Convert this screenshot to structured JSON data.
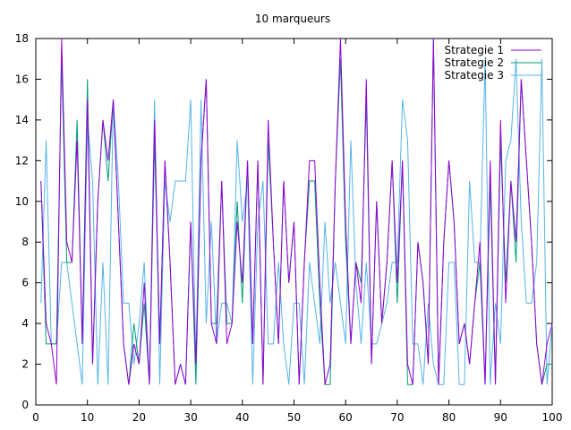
{
  "chart_data": {
    "type": "line",
    "title": "10 marqueurs",
    "xlabel": "",
    "ylabel": "",
    "xlim": [
      0,
      100
    ],
    "ylim": [
      0,
      18
    ],
    "xticks": [
      0,
      10,
      20,
      30,
      40,
      50,
      60,
      70,
      80,
      90,
      100
    ],
    "yticks": [
      0,
      2,
      4,
      6,
      8,
      10,
      12,
      14,
      16,
      18
    ],
    "grid": false,
    "legend_position": "top-right",
    "x": [
      1,
      2,
      3,
      4,
      5,
      6,
      7,
      8,
      9,
      10,
      11,
      12,
      13,
      14,
      15,
      16,
      17,
      18,
      19,
      20,
      21,
      22,
      23,
      24,
      25,
      26,
      27,
      28,
      29,
      30,
      31,
      32,
      33,
      34,
      35,
      36,
      37,
      38,
      39,
      40,
      41,
      42,
      43,
      44,
      45,
      46,
      47,
      48,
      49,
      50,
      51,
      52,
      53,
      54,
      55,
      56,
      57,
      58,
      59,
      60,
      61,
      62,
      63,
      64,
      65,
      66,
      67,
      68,
      69,
      70,
      71,
      72,
      73,
      74,
      75,
      76,
      77,
      78,
      79,
      80,
      81,
      82,
      83,
      84,
      85,
      86,
      87,
      88,
      89,
      90,
      91,
      92,
      93,
      94,
      95,
      96,
      97,
      98,
      99,
      100
    ],
    "series": [
      {
        "name": "Strategie 1",
        "color": "#9400d3",
        "values": [
          11,
          4,
          3,
          1,
          18,
          8,
          7,
          13,
          3,
          15,
          2,
          10,
          14,
          12,
          15,
          9,
          3,
          1,
          3,
          2,
          6,
          1,
          14,
          3,
          12,
          7,
          1,
          2,
          1,
          9,
          2,
          12,
          16,
          4,
          3,
          11,
          3,
          4,
          9,
          6,
          12,
          3,
          12,
          1,
          14,
          8,
          3,
          11,
          6,
          9,
          1,
          7,
          12,
          12,
          6,
          1,
          2,
          11,
          18,
          9,
          3,
          7,
          5,
          16,
          2,
          10,
          4,
          7,
          12,
          6,
          12,
          2,
          1,
          8,
          6,
          2,
          18,
          1,
          8,
          12,
          9,
          3,
          4,
          2,
          5,
          8,
          1,
          12,
          1,
          14,
          5,
          11,
          8,
          16,
          12,
          8,
          3,
          1,
          3,
          4
        ]
      },
      {
        "name": "Strategie 2",
        "color": "#009e73",
        "values": [
          11,
          3,
          3,
          3,
          17,
          7,
          7,
          14,
          3,
          16,
          2,
          10,
          14,
          11,
          15,
          9,
          3,
          1,
          4,
          2,
          5,
          1,
          13,
          3,
          12,
          7,
          1,
          2,
          1,
          9,
          1,
          12,
          16,
          4,
          4,
          11,
          4,
          4,
          10,
          5,
          12,
          3,
          12,
          1,
          13,
          8,
          3,
          11,
          6,
          9,
          1,
          7,
          11,
          11,
          5,
          1,
          1,
          11,
          17,
          8,
          3,
          7,
          6,
          15,
          2,
          10,
          4,
          7,
          12,
          5,
          12,
          1,
          1,
          8,
          6,
          2,
          18,
          1,
          8,
          12,
          9,
          3,
          4,
          2,
          5,
          7,
          1,
          11,
          1,
          13,
          6,
          11,
          7,
          16,
          12,
          8,
          3,
          1,
          2,
          2
        ]
      },
      {
        "name": "Strategie 3",
        "color": "#56b4e9",
        "values": [
          5,
          13,
          3,
          3,
          7,
          7,
          5,
          3,
          1,
          14,
          11,
          1,
          7,
          1,
          15,
          11,
          5,
          5,
          2,
          4,
          7,
          1,
          15,
          1,
          11,
          9,
          11,
          11,
          11,
          15,
          2,
          15,
          4,
          9,
          3,
          5,
          5,
          4,
          13,
          9,
          11,
          1,
          9,
          11,
          3,
          3,
          7,
          3,
          1,
          5,
          5,
          1,
          7,
          5,
          3,
          9,
          5,
          7,
          5,
          3,
          13,
          6,
          3,
          7,
          3,
          3,
          4,
          5,
          7,
          7,
          15,
          13,
          3,
          3,
          1,
          5,
          2,
          1,
          1,
          7,
          7,
          1,
          1,
          11,
          7,
          7,
          17,
          1,
          5,
          3,
          12,
          13,
          17,
          9,
          5,
          5,
          7,
          17,
          1,
          4
        ]
      }
    ]
  }
}
